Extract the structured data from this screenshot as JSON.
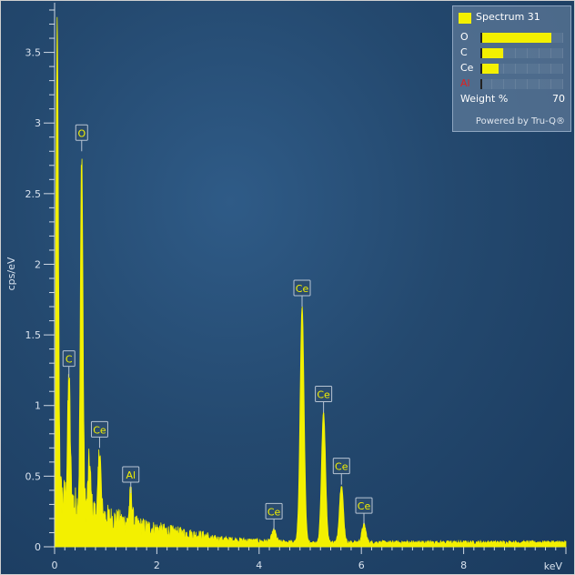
{
  "chart_data": {
    "type": "line",
    "xlabel": "keV",
    "ylabel": "cps/eV",
    "xlim": [
      0,
      10
    ],
    "ylim": [
      0,
      3.8
    ],
    "x_ticks": [
      "0",
      "2",
      "4",
      "6",
      "8"
    ],
    "y_ticks": [
      "0",
      "0.5",
      "1",
      "1.5",
      "2",
      "2.5",
      "3",
      "3.5"
    ],
    "series": [
      {
        "name": "Spectrum 31",
        "color": "#f3f000",
        "peaks": [
          {
            "x": 0.05,
            "y": 3.65,
            "label": ""
          },
          {
            "x": 0.28,
            "y": 1.2,
            "label": "C"
          },
          {
            "x": 0.53,
            "y": 2.8,
            "label": "O"
          },
          {
            "x": 0.68,
            "y": 0.6,
            "label": ""
          },
          {
            "x": 0.88,
            "y": 0.7,
            "label": "Ce"
          },
          {
            "x": 1.49,
            "y": 0.38,
            "label": "Al"
          },
          {
            "x": 4.29,
            "y": 0.12,
            "label": "Ce"
          },
          {
            "x": 4.84,
            "y": 1.7,
            "label": "Ce"
          },
          {
            "x": 5.26,
            "y": 0.95,
            "label": "Ce"
          },
          {
            "x": 5.61,
            "y": 0.44,
            "label": "Ce"
          },
          {
            "x": 6.05,
            "y": 0.16,
            "label": "Ce"
          }
        ]
      }
    ]
  },
  "legend": {
    "title": "Spectrum 31",
    "weight_label": "Weight %",
    "weight_max": "70",
    "powered_by": "Powered by Tru-Q®",
    "elements": [
      {
        "symbol": "O",
        "fraction": 0.86,
        "color": "#ffffff"
      },
      {
        "symbol": "C",
        "fraction": 0.28,
        "color": "#ffffff"
      },
      {
        "symbol": "Ce",
        "fraction": 0.22,
        "color": "#ffffff"
      },
      {
        "symbol": "Al",
        "fraction": 0.0,
        "color": "#e02020"
      }
    ]
  }
}
